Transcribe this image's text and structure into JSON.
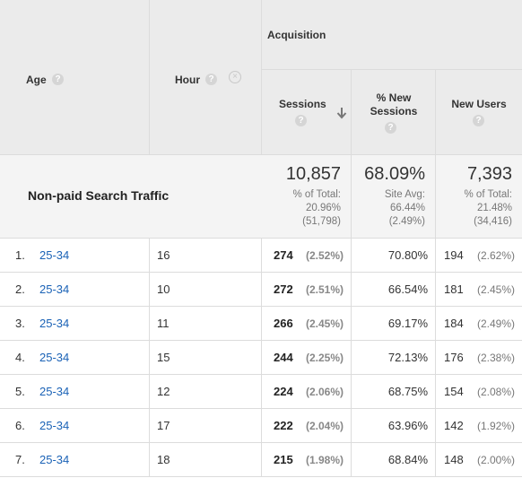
{
  "header": {
    "group_label": "Acquisition",
    "columns": {
      "age": "Age",
      "hour": "Hour",
      "sessions": "Sessions",
      "pct_new_sessions_line1": "% New",
      "pct_new_sessions_line2": "Sessions",
      "new_users": "New Users"
    },
    "help_icon": "?",
    "sort_indicator": "descending-arrow-icon",
    "remove_icon": "close-icon"
  },
  "summary": {
    "segment_label": "Non-paid Search Traffic",
    "sessions": {
      "value": "10,857",
      "caption": "% of Total:",
      "pct": "20.96%",
      "total": "(51,798)"
    },
    "pct_new_sessions": {
      "value": "68.09%",
      "caption": "Site Avg:",
      "pct": "66.44%",
      "total": "(2.49%)"
    },
    "new_users": {
      "value": "7,393",
      "caption": "% of Total:",
      "pct": "21.48%",
      "total": "(34,416)"
    }
  },
  "rows": [
    {
      "num": "1.",
      "age": "25-34",
      "hour": "16",
      "sessions": "274",
      "sessions_pct": "(2.52%)",
      "pct_new": "70.80%",
      "new_users": "194",
      "new_users_pct": "(2.62%)"
    },
    {
      "num": "2.",
      "age": "25-34",
      "hour": "10",
      "sessions": "272",
      "sessions_pct": "(2.51%)",
      "pct_new": "66.54%",
      "new_users": "181",
      "new_users_pct": "(2.45%)"
    },
    {
      "num": "3.",
      "age": "25-34",
      "hour": "11",
      "sessions": "266",
      "sessions_pct": "(2.45%)",
      "pct_new": "69.17%",
      "new_users": "184",
      "new_users_pct": "(2.49%)"
    },
    {
      "num": "4.",
      "age": "25-34",
      "hour": "15",
      "sessions": "244",
      "sessions_pct": "(2.25%)",
      "pct_new": "72.13%",
      "new_users": "176",
      "new_users_pct": "(2.38%)"
    },
    {
      "num": "5.",
      "age": "25-34",
      "hour": "12",
      "sessions": "224",
      "sessions_pct": "(2.06%)",
      "pct_new": "68.75%",
      "new_users": "154",
      "new_users_pct": "(2.08%)"
    },
    {
      "num": "6.",
      "age": "25-34",
      "hour": "17",
      "sessions": "222",
      "sessions_pct": "(2.04%)",
      "pct_new": "63.96%",
      "new_users": "142",
      "new_users_pct": "(1.92%)"
    },
    {
      "num": "7.",
      "age": "25-34",
      "hour": "18",
      "sessions": "215",
      "sessions_pct": "(1.98%)",
      "pct_new": "68.84%",
      "new_users": "148",
      "new_users_pct": "(2.00%)"
    }
  ]
}
